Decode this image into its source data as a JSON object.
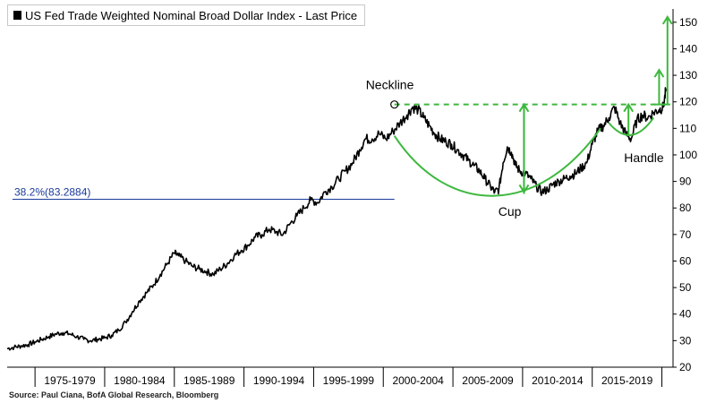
{
  "chart_data": {
    "type": "line",
    "title": "US Fed Trade Weighted Nominal Broad Dollar Index - Last Price",
    "legend": "US Fed Trade Weighted Nominal Broad Dollar Index - Last Price",
    "source": "Source: Paul Ciana, BofA Global Research, Bloomberg",
    "xlabel": "",
    "ylabel": "",
    "ylim": [
      20,
      155
    ],
    "xlim": [
      1973.0,
      2020.8
    ],
    "y_ticks": [
      20,
      30,
      40,
      50,
      60,
      70,
      80,
      90,
      100,
      110,
      120,
      130,
      140,
      150
    ],
    "x_categories": [
      "1975-1979",
      "1980-1984",
      "1985-1989",
      "1990-1994",
      "1995-1999",
      "2000-2004",
      "2005-2009",
      "2010-2014",
      "2015-2019"
    ],
    "x_category_ranges": [
      [
        1975,
        1980
      ],
      [
        1980,
        1985
      ],
      [
        1985,
        1990
      ],
      [
        1990,
        1995
      ],
      [
        1995,
        2000
      ],
      [
        2000,
        2005
      ],
      [
        2005,
        2010
      ],
      [
        2010,
        2015
      ],
      [
        2015,
        2020
      ]
    ],
    "grid": false,
    "legend_position": "top-left",
    "series": [
      {
        "name": "US Fed Trade Weighted Nominal Broad Dollar Index",
        "x": [
          1973.0,
          1973.5,
          1974.0,
          1974.5,
          1975.0,
          1975.5,
          1976.0,
          1976.5,
          1977.0,
          1977.5,
          1978.0,
          1978.5,
          1979.0,
          1979.5,
          1980.0,
          1980.5,
          1981.0,
          1981.5,
          1982.0,
          1982.5,
          1983.0,
          1983.5,
          1984.0,
          1984.5,
          1985.0,
          1985.3,
          1985.8,
          1986.3,
          1986.8,
          1987.3,
          1987.8,
          1988.3,
          1988.8,
          1989.3,
          1989.8,
          1990.3,
          1990.8,
          1991.3,
          1991.8,
          1992.3,
          1992.8,
          1993.3,
          1993.8,
          1994.3,
          1994.8,
          1995.3,
          1995.8,
          1996.3,
          1996.8,
          1997.3,
          1997.8,
          1998.3,
          1998.7,
          1999.2,
          1999.7,
          2000.2,
          2000.7,
          2001.2,
          2001.7,
          2002.1,
          2002.5,
          2002.9,
          2003.3,
          2003.7,
          2004.1,
          2004.5,
          2004.9,
          2005.3,
          2005.7,
          2006.1,
          2006.5,
          2006.9,
          2007.3,
          2007.7,
          2008.0,
          2008.3,
          2008.6,
          2008.9,
          2009.2,
          2009.5,
          2009.8,
          2010.2,
          2010.6,
          2011.0,
          2011.4,
          2011.8,
          2012.2,
          2012.6,
          2013.0,
          2013.4,
          2013.8,
          2014.2,
          2014.6,
          2015.0,
          2015.4,
          2015.8,
          2016.2,
          2016.6,
          2017.0,
          2017.4,
          2017.8,
          2018.2,
          2018.6,
          2019.0,
          2019.4,
          2019.8,
          2020.1,
          2020.3
        ],
        "values": [
          27,
          27.5,
          28,
          28.5,
          29.5,
          30.5,
          31.5,
          32.5,
          33,
          32.5,
          31.5,
          30.5,
          30,
          30.5,
          31,
          32,
          34,
          37,
          41,
          45,
          48,
          51,
          55,
          59,
          63,
          62,
          60,
          58,
          57,
          56,
          55,
          57,
          59,
          62,
          64,
          66,
          69,
          70,
          72,
          71,
          70,
          74,
          77,
          80,
          83,
          82,
          86,
          88,
          91,
          94,
          97,
          102,
          106,
          106,
          108,
          106,
          109,
          112,
          115,
          118,
          117,
          114,
          111,
          108,
          106,
          105,
          104,
          102,
          100,
          98,
          96,
          94,
          91,
          88,
          86,
          87,
          97,
          103,
          101,
          96,
          94,
          93,
          91,
          88,
          86,
          87,
          89,
          90,
          91,
          92,
          93,
          95,
          97,
          104,
          109,
          111,
          114,
          118,
          112,
          108,
          106,
          113,
          115,
          114,
          116,
          117,
          118,
          125
        ]
      }
    ],
    "annotations": [
      {
        "text": "Neckline",
        "x": 2000.8,
        "y": 119
      },
      {
        "text": "Cup",
        "x": 2009.8,
        "y": 80
      },
      {
        "text": "Handle",
        "x": 2017.8,
        "y": 97
      },
      {
        "text": "38.2%(83.2884)",
        "y": 83.2884,
        "kind": "fibonacci-level"
      }
    ],
    "pattern": {
      "neckline_y": 119,
      "neckline_x_range": [
        2000.8,
        2020.3
      ],
      "cup_bottom_y": 84,
      "cup_x_range": [
        2000.8,
        2015.6
      ],
      "handle_low_y": 106,
      "handle_x_range": [
        2016.2,
        2019.4
      ],
      "targets": [
        132,
        152
      ]
    },
    "colors": {
      "line": "#000000",
      "pattern": "#3db83d",
      "fibonacci": "#1a3a9a"
    }
  }
}
